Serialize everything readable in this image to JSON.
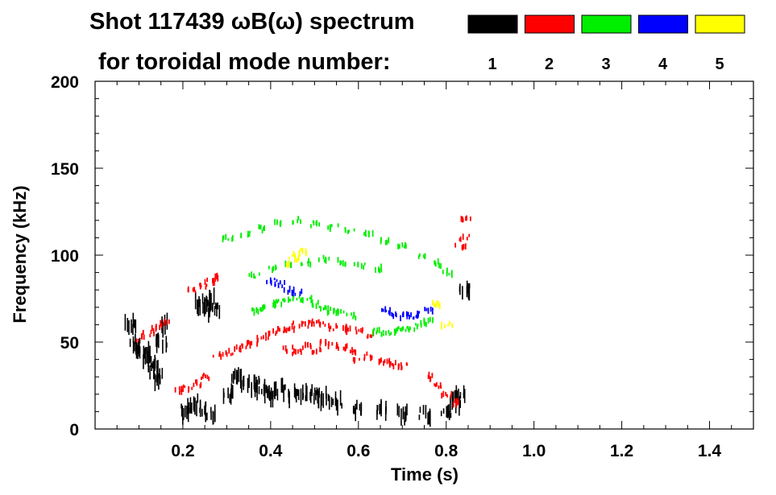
{
  "chart_data": {
    "type": "heatmap",
    "title": "Shot 117439 ωB(ω) spectrum",
    "subtitle": "for toroidal mode number:",
    "xlabel": "Time (s)",
    "ylabel": "Frequency (kHz)",
    "xlim": [
      0.0,
      1.5
    ],
    "ylim": [
      0,
      200
    ],
    "x_ticks": [
      "0.2",
      "0.4",
      "0.6",
      "0.8",
      "1.0",
      "1.2",
      "1.4"
    ],
    "x_tick_values": [
      0.2,
      0.4,
      0.6,
      0.8,
      1.0,
      1.2,
      1.4
    ],
    "y_ticks": [
      "0",
      "50",
      "100",
      "150",
      "200"
    ],
    "y_tick_values": [
      0,
      50,
      100,
      150,
      200
    ],
    "grid": false,
    "legend_placement": "top-right",
    "colors": {
      "1": "#000000",
      "2": "#ff0000",
      "3": "#00ee00",
      "4": "#0000ff",
      "5": "#ffff00"
    },
    "legend": [
      {
        "label": "1",
        "color": "#000000"
      },
      {
        "label": "2",
        "color": "#ff0000"
      },
      {
        "label": "3",
        "color": "#00ee00"
      },
      {
        "label": "4",
        "color": "#0000ff"
      },
      {
        "label": "5",
        "color": "#ffff00"
      }
    ],
    "series": [
      {
        "name": "1",
        "color": "#000000",
        "points": [
          [
            0.08,
            60
          ],
          [
            0.09,
            50
          ],
          [
            0.1,
            45
          ],
          [
            0.11,
            45
          ],
          [
            0.12,
            40
          ],
          [
            0.13,
            35
          ],
          [
            0.14,
            30
          ],
          [
            0.15,
            50
          ],
          [
            0.16,
            60
          ],
          [
            0.2,
            10
          ],
          [
            0.22,
            15
          ],
          [
            0.24,
            12
          ],
          [
            0.26,
            8
          ],
          [
            0.25,
            70
          ],
          [
            0.26,
            75
          ],
          [
            0.27,
            68
          ],
          [
            0.24,
            72
          ],
          [
            0.3,
            20
          ],
          [
            0.32,
            30
          ],
          [
            0.34,
            25
          ],
          [
            0.36,
            25
          ],
          [
            0.38,
            22
          ],
          [
            0.4,
            20
          ],
          [
            0.42,
            22
          ],
          [
            0.45,
            20
          ],
          [
            0.48,
            20
          ],
          [
            0.5,
            20
          ],
          [
            0.52,
            18
          ],
          [
            0.55,
            15
          ],
          [
            0.6,
            12
          ],
          [
            0.65,
            10
          ],
          [
            0.7,
            8
          ],
          [
            0.75,
            8
          ],
          [
            0.8,
            10
          ],
          [
            0.82,
            15
          ],
          [
            0.83,
            20
          ],
          [
            0.84,
            80
          ]
        ]
      },
      {
        "name": "2",
        "color": "#ff0000",
        "points": [
          [
            0.1,
            52
          ],
          [
            0.12,
            55
          ],
          [
            0.14,
            58
          ],
          [
            0.16,
            62
          ],
          [
            0.19,
            22
          ],
          [
            0.21,
            24
          ],
          [
            0.23,
            26
          ],
          [
            0.25,
            30
          ],
          [
            0.22,
            80
          ],
          [
            0.24,
            82
          ],
          [
            0.26,
            85
          ],
          [
            0.27,
            87
          ],
          [
            0.28,
            42
          ],
          [
            0.3,
            44
          ],
          [
            0.32,
            46
          ],
          [
            0.34,
            48
          ],
          [
            0.36,
            50
          ],
          [
            0.38,
            52
          ],
          [
            0.4,
            55
          ],
          [
            0.42,
            57
          ],
          [
            0.44,
            58
          ],
          [
            0.46,
            60
          ],
          [
            0.48,
            60
          ],
          [
            0.5,
            61
          ],
          [
            0.52,
            60
          ],
          [
            0.54,
            58
          ],
          [
            0.56,
            58
          ],
          [
            0.58,
            57
          ],
          [
            0.6,
            56
          ],
          [
            0.62,
            54
          ],
          [
            0.44,
            46
          ],
          [
            0.46,
            44
          ],
          [
            0.48,
            48
          ],
          [
            0.5,
            45
          ],
          [
            0.52,
            50
          ],
          [
            0.54,
            48
          ],
          [
            0.56,
            47
          ],
          [
            0.58,
            45
          ],
          [
            0.6,
            40
          ],
          [
            0.62,
            42
          ],
          [
            0.64,
            40
          ],
          [
            0.66,
            38
          ],
          [
            0.68,
            37
          ],
          [
            0.7,
            36
          ],
          [
            0.76,
            30
          ],
          [
            0.78,
            25
          ],
          [
            0.8,
            20
          ],
          [
            0.82,
            15
          ],
          [
            0.83,
            105
          ],
          [
            0.84,
            110
          ],
          [
            0.845,
            120
          ]
        ]
      },
      {
        "name": "3",
        "color": "#00ee00",
        "points": [
          [
            0.36,
            68
          ],
          [
            0.38,
            70
          ],
          [
            0.4,
            72
          ],
          [
            0.42,
            73
          ],
          [
            0.44,
            74
          ],
          [
            0.46,
            75
          ],
          [
            0.48,
            74
          ],
          [
            0.5,
            72
          ],
          [
            0.52,
            70
          ],
          [
            0.54,
            68
          ],
          [
            0.56,
            67
          ],
          [
            0.58,
            65
          ],
          [
            0.64,
            56
          ],
          [
            0.66,
            55
          ],
          [
            0.68,
            56
          ],
          [
            0.7,
            58
          ],
          [
            0.72,
            58
          ],
          [
            0.74,
            60
          ],
          [
            0.76,
            62
          ],
          [
            0.36,
            88
          ],
          [
            0.4,
            92
          ],
          [
            0.44,
            95
          ],
          [
            0.48,
            96
          ],
          [
            0.52,
            98
          ],
          [
            0.56,
            96
          ],
          [
            0.6,
            94
          ],
          [
            0.64,
            92
          ],
          [
            0.3,
            110
          ],
          [
            0.34,
            112
          ],
          [
            0.38,
            115
          ],
          [
            0.42,
            118
          ],
          [
            0.46,
            120
          ],
          [
            0.5,
            118
          ],
          [
            0.54,
            116
          ],
          [
            0.58,
            114
          ],
          [
            0.62,
            112
          ],
          [
            0.66,
            108
          ],
          [
            0.7,
            105
          ],
          [
            0.74,
            100
          ],
          [
            0.78,
            95
          ],
          [
            0.8,
            90
          ]
        ]
      },
      {
        "name": "4",
        "color": "#0000ff",
        "points": [
          [
            0.4,
            85
          ],
          [
            0.42,
            83
          ],
          [
            0.44,
            80
          ],
          [
            0.46,
            78
          ],
          [
            0.66,
            68
          ],
          [
            0.68,
            66
          ],
          [
            0.7,
            65
          ],
          [
            0.72,
            65
          ],
          [
            0.74,
            66
          ],
          [
            0.76,
            68
          ]
        ]
      },
      {
        "name": "5",
        "color": "#ffff00",
        "points": [
          [
            0.44,
            95
          ],
          [
            0.45,
            98
          ],
          [
            0.46,
            100
          ],
          [
            0.47,
            102
          ],
          [
            0.78,
            72
          ],
          [
            0.8,
            60
          ]
        ]
      }
    ]
  }
}
